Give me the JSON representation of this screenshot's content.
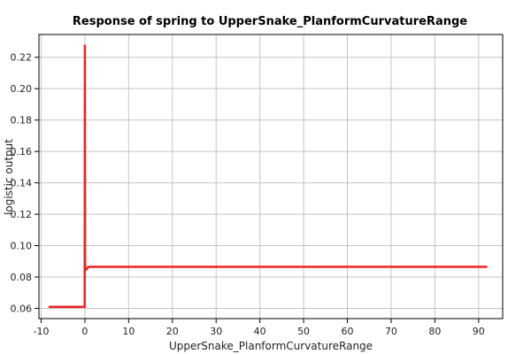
{
  "chart_data": {
    "type": "line",
    "title": "Response of spring to UpperSnake_PlanformCurvatureRange",
    "xlabel": "UpperSnake_PlanformCurvatureRange",
    "ylabel": "logistic output",
    "xlim": [
      -10.5,
      95.5
    ],
    "ylim": [
      0.0535,
      0.2345
    ],
    "xticks": [
      -10,
      0,
      10,
      20,
      30,
      40,
      50,
      60,
      70,
      80,
      90
    ],
    "xtick_labels": [
      "-10",
      "0",
      "10",
      "20",
      "30",
      "40",
      "50",
      "60",
      "70",
      "80",
      "90"
    ],
    "yticks": [
      0.06,
      0.08,
      0.1,
      0.12,
      0.14,
      0.16,
      0.18,
      0.2,
      0.22
    ],
    "ytick_labels": [
      "0.06",
      "0.08",
      "0.10",
      "0.12",
      "0.14",
      "0.16",
      "0.18",
      "0.20",
      "0.22"
    ],
    "grid": true,
    "series": [
      {
        "color": "#ee2222",
        "x": [
          -8.3,
          -0.05,
          0.0,
          0.05,
          0.15,
          0.3,
          0.9,
          92.0
        ],
        "y": [
          0.061,
          0.061,
          0.228,
          0.09,
          0.084,
          0.085,
          0.0865,
          0.0865
        ]
      }
    ]
  }
}
